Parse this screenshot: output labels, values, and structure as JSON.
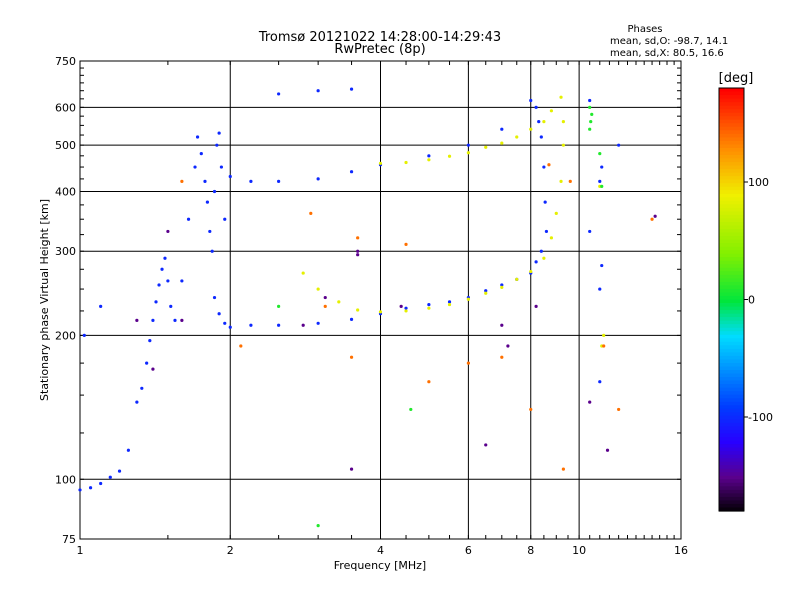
{
  "chart_data": {
    "type": "scatter",
    "title": "Tromsø 20121022 14:28:00-14:29:43",
    "subtitle": "RwPretec (8p)",
    "info": {
      "header": "Phases",
      "line1": "mean, sd,O: -98.7, 14.1",
      "line2": "mean, sd,X:  80.5, 16.6"
    },
    "xlabel": "Frequency [MHz]",
    "ylabel": "Stationary phase Virtual Height [km]",
    "xscale": "log",
    "yscale": "log",
    "xlim": [
      1,
      16
    ],
    "ylim": [
      75,
      750
    ],
    "xticks": [
      1,
      2,
      4,
      6,
      8,
      10,
      16
    ],
    "xtick_labels": [
      "1",
      "2",
      "4",
      "6",
      "8",
      "10",
      "16"
    ],
    "yticks": [
      75,
      100,
      200,
      300,
      400,
      500,
      600,
      750
    ],
    "ytick_labels": [
      "75",
      "100",
      "200",
      "300",
      "400",
      "500",
      "600",
      "750"
    ],
    "grid": true,
    "colorbar": {
      "label": "[deg]",
      "range": [
        -180,
        180
      ],
      "ticks": [
        100,
        0,
        -100
      ],
      "tick_labels": [
        "100",
        "0",
        "-100"
      ]
    },
    "series": [
      {
        "color_value": -100,
        "points": [
          [
            1.0,
            95
          ],
          [
            1.05,
            96
          ],
          [
            1.1,
            98
          ],
          [
            1.15,
            101
          ],
          [
            1.2,
            104
          ],
          [
            1.25,
            115
          ],
          [
            1.3,
            145
          ],
          [
            1.33,
            155
          ],
          [
            1.36,
            175
          ],
          [
            1.38,
            195
          ],
          [
            1.4,
            215
          ],
          [
            1.42,
            235
          ],
          [
            1.44,
            255
          ],
          [
            1.46,
            275
          ],
          [
            1.48,
            290
          ],
          [
            1.5,
            260
          ],
          [
            1.52,
            230
          ],
          [
            1.55,
            215
          ],
          [
            1.6,
            260
          ],
          [
            1.65,
            350
          ],
          [
            1.7,
            450
          ],
          [
            1.72,
            520
          ],
          [
            1.75,
            480
          ],
          [
            1.78,
            420
          ],
          [
            1.8,
            380
          ],
          [
            1.82,
            330
          ],
          [
            1.84,
            300
          ],
          [
            1.86,
            400
          ],
          [
            1.88,
            500
          ],
          [
            1.9,
            530
          ],
          [
            1.92,
            450
          ],
          [
            1.95,
            350
          ],
          [
            2.0,
            430
          ],
          [
            2.2,
            420
          ],
          [
            2.5,
            420
          ],
          [
            3.0,
            425
          ],
          [
            3.5,
            440
          ],
          [
            4.0,
            455
          ],
          [
            5.0,
            475
          ],
          [
            6.0,
            500
          ],
          [
            7.0,
            540
          ],
          [
            8.0,
            620
          ],
          [
            8.2,
            600
          ],
          [
            8.3,
            560
          ],
          [
            8.4,
            520
          ],
          [
            8.5,
            450
          ],
          [
            8.55,
            380
          ],
          [
            8.6,
            330
          ],
          [
            8.4,
            300
          ],
          [
            8.2,
            285
          ],
          [
            8.0,
            270
          ],
          [
            7.5,
            262
          ],
          [
            7.0,
            255
          ],
          [
            6.5,
            248
          ],
          [
            6.0,
            240
          ],
          [
            5.5,
            235
          ],
          [
            5.0,
            232
          ],
          [
            4.5,
            228
          ],
          [
            4.0,
            222
          ],
          [
            3.5,
            216
          ],
          [
            3.0,
            212
          ],
          [
            2.5,
            210
          ],
          [
            2.2,
            210
          ],
          [
            2.0,
            208
          ],
          [
            1.95,
            212
          ],
          [
            1.9,
            222
          ],
          [
            1.86,
            240
          ],
          [
            2.5,
            640
          ],
          [
            3.0,
            650
          ],
          [
            3.5,
            655
          ],
          [
            1.02,
            200
          ],
          [
            1.1,
            230
          ],
          [
            10.5,
            330
          ],
          [
            11.0,
            420
          ],
          [
            11.0,
            250
          ],
          [
            11.1,
            450
          ],
          [
            12.0,
            500
          ],
          [
            11.0,
            160
          ],
          [
            11.1,
            280
          ],
          [
            10.5,
            620
          ]
        ]
      },
      {
        "color_value": 85,
        "points": [
          [
            2.8,
            270
          ],
          [
            3.0,
            250
          ],
          [
            3.3,
            235
          ],
          [
            3.6,
            226
          ],
          [
            4.0,
            224
          ],
          [
            4.5,
            225
          ],
          [
            5.0,
            228
          ],
          [
            5.5,
            232
          ],
          [
            6.0,
            238
          ],
          [
            6.5,
            245
          ],
          [
            7.0,
            252
          ],
          [
            7.5,
            262
          ],
          [
            8.0,
            272
          ],
          [
            8.5,
            290
          ],
          [
            8.8,
            320
          ],
          [
            9.0,
            360
          ],
          [
            9.2,
            420
          ],
          [
            9.3,
            500
          ],
          [
            9.3,
            560
          ],
          [
            9.2,
            630
          ],
          [
            8.8,
            590
          ],
          [
            8.5,
            560
          ],
          [
            8.0,
            540
          ],
          [
            7.5,
            520
          ],
          [
            7.0,
            505
          ],
          [
            6.5,
            495
          ],
          [
            6.0,
            482
          ],
          [
            5.5,
            474
          ],
          [
            5.0,
            466
          ],
          [
            4.5,
            460
          ],
          [
            4.0,
            458
          ],
          [
            11.0,
            410
          ],
          [
            11.1,
            190
          ],
          [
            11.2,
            200
          ]
        ]
      },
      {
        "color_value": 10,
        "points": [
          [
            10.5,
            600
          ],
          [
            10.6,
            580
          ],
          [
            10.55,
            560
          ],
          [
            10.5,
            540
          ],
          [
            11.0,
            480
          ],
          [
            2.5,
            230
          ],
          [
            3.0,
            80
          ],
          [
            4.6,
            140
          ],
          [
            11.1,
            410
          ]
        ]
      },
      {
        "color_value": 140,
        "points": [
          [
            1.6,
            420
          ],
          [
            2.1,
            190
          ],
          [
            3.5,
            180
          ],
          [
            3.1,
            230
          ],
          [
            5.0,
            160
          ],
          [
            6.0,
            175
          ],
          [
            7.0,
            180
          ],
          [
            8.0,
            140
          ],
          [
            9.3,
            105
          ],
          [
            11.2,
            190
          ],
          [
            12.0,
            140
          ],
          [
            14.0,
            350
          ],
          [
            9.6,
            420
          ],
          [
            2.9,
            360
          ],
          [
            3.6,
            320
          ],
          [
            4.5,
            310
          ],
          [
            8.7,
            455
          ]
        ]
      },
      {
        "color_value": -150,
        "points": [
          [
            1.5,
            330
          ],
          [
            1.4,
            170
          ],
          [
            1.3,
            215
          ],
          [
            1.6,
            215
          ],
          [
            2.8,
            210
          ],
          [
            3.1,
            240
          ],
          [
            3.6,
            300
          ],
          [
            4.4,
            230
          ],
          [
            7.0,
            210
          ],
          [
            8.2,
            230
          ],
          [
            10.5,
            145
          ],
          [
            11.4,
            115
          ],
          [
            14.2,
            355
          ],
          [
            3.6,
            295
          ],
          [
            3.5,
            105
          ],
          [
            6.5,
            118
          ],
          [
            7.2,
            190
          ]
        ]
      }
    ]
  }
}
